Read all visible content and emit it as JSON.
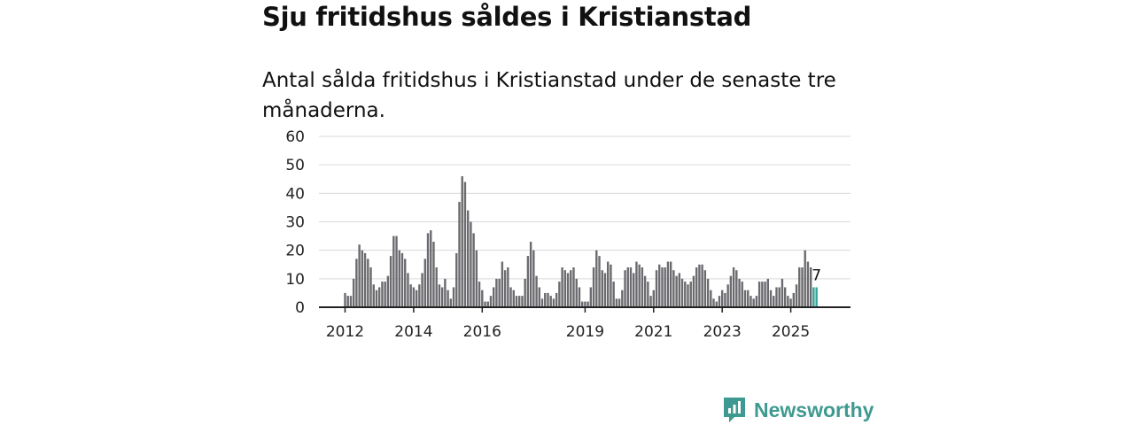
{
  "title": "Sju fritidshus såldes i Kristianstad",
  "subtitle": "Antal sålda fritidshus i Kristianstad under de senaste tre månaderna.",
  "brand": {
    "name": "Newsworthy",
    "icon": "newsworthy-logo-icon"
  },
  "colors": {
    "bar": "#6b6b6f",
    "highlight": "#2fa59a",
    "grid": "#d9d9d9",
    "axis": "#222222",
    "brand": "#3e9a90"
  },
  "chart_data": {
    "type": "bar",
    "title": "Sju fritidshus såldes i Kristianstad",
    "xlabel": "",
    "ylabel": "",
    "ylim": [
      0,
      60
    ],
    "yticks": [
      0,
      10,
      20,
      30,
      40,
      50,
      60
    ],
    "start": "2012-01",
    "xtick_labels": [
      {
        "label": "2012",
        "index": 0
      },
      {
        "label": "2014",
        "index": 24
      },
      {
        "label": "2016",
        "index": 48
      },
      {
        "label": "2019",
        "index": 84
      },
      {
        "label": "2021",
        "index": 108
      },
      {
        "label": "2023",
        "index": 132
      },
      {
        "label": "2025",
        "index": 156
      }
    ],
    "values": [
      5,
      4,
      4,
      10,
      17,
      22,
      20,
      19,
      17,
      14,
      8,
      6,
      7,
      9,
      9,
      11,
      18,
      25,
      25,
      20,
      19,
      17,
      12,
      8,
      7,
      6,
      8,
      12,
      17,
      26,
      27,
      23,
      14,
      8,
      7,
      10,
      6,
      3,
      7,
      19,
      37,
      46,
      44,
      34,
      30,
      26,
      20,
      9,
      6,
      2,
      2,
      4,
      7,
      10,
      10,
      16,
      13,
      14,
      7,
      6,
      4,
      4,
      4,
      10,
      18,
      23,
      20,
      11,
      7,
      3,
      5,
      5,
      4,
      3,
      5,
      9,
      14,
      13,
      12,
      13,
      14,
      10,
      7,
      2,
      2,
      2,
      7,
      14,
      20,
      18,
      13,
      12,
      16,
      15,
      9,
      3,
      3,
      6,
      13,
      14,
      14,
      12,
      16,
      15,
      14,
      11,
      9,
      4,
      6,
      13,
      15,
      14,
      14,
      16,
      16,
      13,
      11,
      12,
      10,
      9,
      8,
      9,
      11,
      14,
      15,
      15,
      13,
      10,
      6,
      3,
      2,
      4,
      6,
      5,
      8,
      11,
      14,
      13,
      10,
      9,
      6,
      6,
      4,
      3,
      4,
      9,
      9,
      9,
      10,
      6,
      4,
      7,
      7,
      10,
      7,
      4,
      3,
      5,
      8,
      14,
      14,
      20,
      16,
      14,
      7,
      7
    ],
    "highlight_last": 2,
    "last_value_label": "7"
  }
}
